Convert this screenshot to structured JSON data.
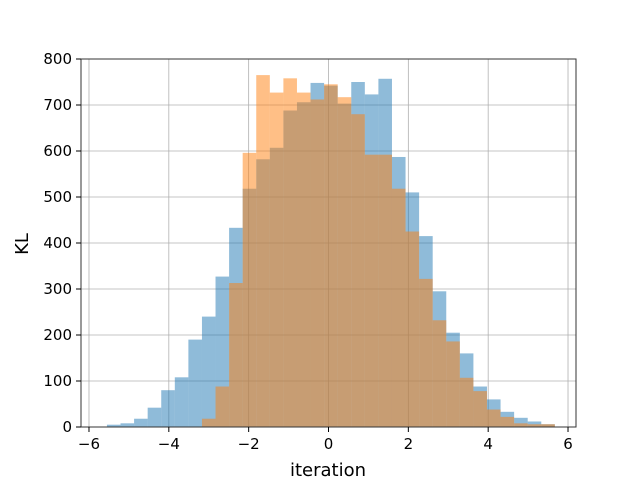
{
  "chart_data": {
    "type": "bar",
    "title": "",
    "xlabel": "iteration",
    "ylabel": "KL",
    "xlim": [
      -6.2,
      6.2
    ],
    "ylim": [
      0,
      800
    ],
    "grid": true,
    "bin_width": 0.34,
    "x_ticks": [
      -6,
      -4,
      -2,
      0,
      2,
      4,
      6
    ],
    "y_ticks": [
      0,
      100,
      200,
      300,
      400,
      500,
      600,
      700,
      800
    ],
    "series": [
      {
        "color": "#1f77b4",
        "alpha": 0.5,
        "bins": [
          {
            "x0": -5.55,
            "x1": -5.21,
            "count": 5
          },
          {
            "x0": -5.21,
            "x1": -4.87,
            "count": 8
          },
          {
            "x0": -4.87,
            "x1": -4.53,
            "count": 18
          },
          {
            "x0": -4.53,
            "x1": -4.19,
            "count": 42
          },
          {
            "x0": -4.19,
            "x1": -3.85,
            "count": 80
          },
          {
            "x0": -3.85,
            "x1": -3.51,
            "count": 108
          },
          {
            "x0": -3.51,
            "x1": -3.17,
            "count": 190
          },
          {
            "x0": -3.17,
            "x1": -2.83,
            "count": 240
          },
          {
            "x0": -2.83,
            "x1": -2.49,
            "count": 327
          },
          {
            "x0": -2.49,
            "x1": -2.15,
            "count": 433
          },
          {
            "x0": -2.15,
            "x1": -1.81,
            "count": 518
          },
          {
            "x0": -1.81,
            "x1": -1.47,
            "count": 582
          },
          {
            "x0": -1.47,
            "x1": -1.13,
            "count": 607
          },
          {
            "x0": -1.13,
            "x1": -0.79,
            "count": 688
          },
          {
            "x0": -0.79,
            "x1": -0.45,
            "count": 706
          },
          {
            "x0": -0.45,
            "x1": -0.11,
            "count": 748
          },
          {
            "x0": -0.11,
            "x1": 0.23,
            "count": 742
          },
          {
            "x0": 0.23,
            "x1": 0.57,
            "count": 703
          },
          {
            "x0": 0.57,
            "x1": 0.91,
            "count": 750
          },
          {
            "x0": 0.91,
            "x1": 1.25,
            "count": 723
          },
          {
            "x0": 1.25,
            "x1": 1.59,
            "count": 757
          },
          {
            "x0": 1.59,
            "x1": 1.93,
            "count": 587
          },
          {
            "x0": 1.93,
            "x1": 2.27,
            "count": 510
          },
          {
            "x0": 2.27,
            "x1": 2.61,
            "count": 415
          },
          {
            "x0": 2.61,
            "x1": 2.95,
            "count": 295
          },
          {
            "x0": 2.95,
            "x1": 3.29,
            "count": 205
          },
          {
            "x0": 3.29,
            "x1": 3.63,
            "count": 160
          },
          {
            "x0": 3.63,
            "x1": 3.97,
            "count": 88
          },
          {
            "x0": 3.97,
            "x1": 4.31,
            "count": 60
          },
          {
            "x0": 4.31,
            "x1": 4.65,
            "count": 33
          },
          {
            "x0": 4.65,
            "x1": 4.99,
            "count": 20
          },
          {
            "x0": 4.99,
            "x1": 5.33,
            "count": 12
          },
          {
            "x0": 5.33,
            "x1": 5.67,
            "count": 6
          }
        ]
      },
      {
        "color": "#ff7f0e",
        "alpha": 0.5,
        "bins": [
          {
            "x0": -5.55,
            "x1": -5.21,
            "count": 0
          },
          {
            "x0": -5.21,
            "x1": -4.87,
            "count": 0
          },
          {
            "x0": -4.87,
            "x1": -4.53,
            "count": 0
          },
          {
            "x0": -4.53,
            "x1": -4.19,
            "count": 0
          },
          {
            "x0": -4.19,
            "x1": -3.85,
            "count": 0
          },
          {
            "x0": -3.85,
            "x1": -3.51,
            "count": 0
          },
          {
            "x0": -3.51,
            "x1": -3.17,
            "count": 0
          },
          {
            "x0": -3.17,
            "x1": -2.83,
            "count": 18
          },
          {
            "x0": -2.83,
            "x1": -2.49,
            "count": 88
          },
          {
            "x0": -2.49,
            "x1": -2.15,
            "count": 313
          },
          {
            "x0": -2.15,
            "x1": -1.81,
            "count": 596
          },
          {
            "x0": -1.81,
            "x1": -1.47,
            "count": 765
          },
          {
            "x0": -1.47,
            "x1": -1.13,
            "count": 727
          },
          {
            "x0": -1.13,
            "x1": -0.79,
            "count": 758
          },
          {
            "x0": -0.79,
            "x1": -0.45,
            "count": 727
          },
          {
            "x0": -0.45,
            "x1": -0.11,
            "count": 712
          },
          {
            "x0": -0.11,
            "x1": 0.23,
            "count": 745
          },
          {
            "x0": 0.23,
            "x1": 0.57,
            "count": 717
          },
          {
            "x0": 0.57,
            "x1": 0.91,
            "count": 680
          },
          {
            "x0": 0.91,
            "x1": 1.25,
            "count": 592
          },
          {
            "x0": 1.25,
            "x1": 1.59,
            "count": 592
          },
          {
            "x0": 1.59,
            "x1": 1.93,
            "count": 518
          },
          {
            "x0": 1.93,
            "x1": 2.27,
            "count": 425
          },
          {
            "x0": 2.27,
            "x1": 2.61,
            "count": 322
          },
          {
            "x0": 2.61,
            "x1": 2.95,
            "count": 232
          },
          {
            "x0": 2.95,
            "x1": 3.29,
            "count": 186
          },
          {
            "x0": 3.29,
            "x1": 3.63,
            "count": 107
          },
          {
            "x0": 3.63,
            "x1": 3.97,
            "count": 78
          },
          {
            "x0": 3.97,
            "x1": 4.31,
            "count": 38
          },
          {
            "x0": 4.31,
            "x1": 4.65,
            "count": 22
          },
          {
            "x0": 4.65,
            "x1": 4.99,
            "count": 8
          },
          {
            "x0": 4.99,
            "x1": 5.33,
            "count": 6
          },
          {
            "x0": 5.33,
            "x1": 5.67,
            "count": 6
          }
        ]
      }
    ]
  }
}
